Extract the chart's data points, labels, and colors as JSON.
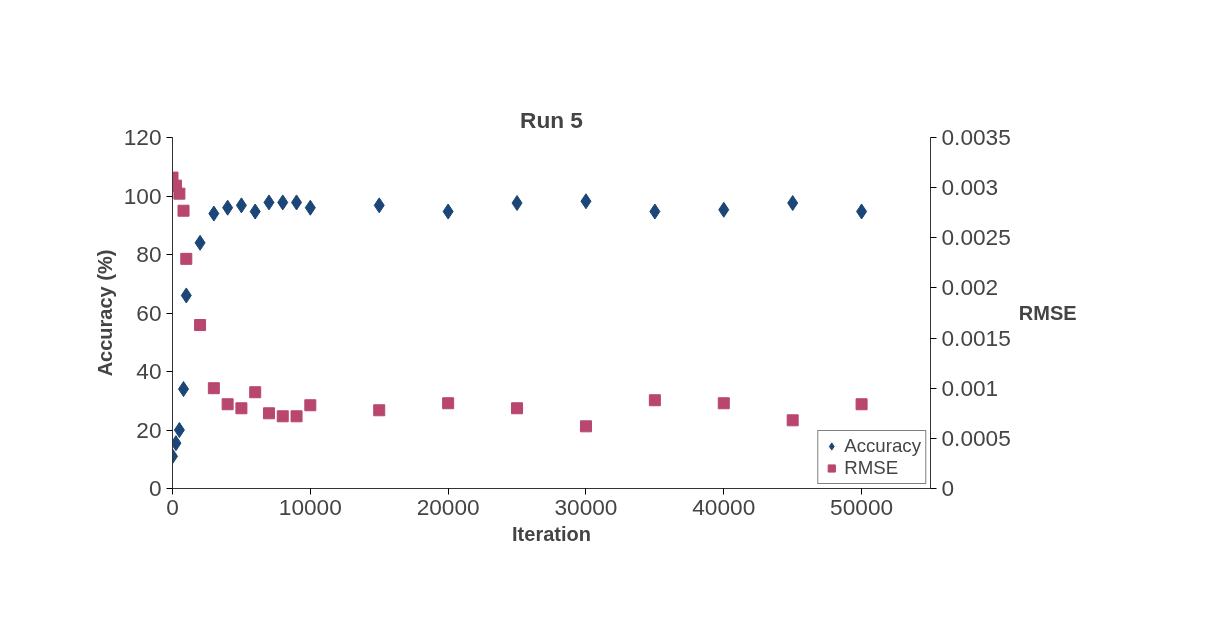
{
  "chart_data": {
    "type": "scatter",
    "title": "Run 5",
    "xlabel": "Iteration",
    "ylabel": "Accuracy (%)",
    "y2label": "RMSE",
    "x": [
      0,
      250,
      500,
      800,
      1000,
      2000,
      3000,
      4000,
      5000,
      6000,
      7000,
      8000,
      9000,
      10000,
      15000,
      20000,
      25000,
      30000,
      35000,
      40000,
      45000,
      50000
    ],
    "series": [
      {
        "name": "Accuracy",
        "color": "#1b4677",
        "marker": "diamond",
        "values": [
          11,
          15.5,
          20,
          34,
          66,
          84,
          94,
          96,
          96.8,
          94.7,
          97.8,
          97.8,
          97.8,
          96,
          96.8,
          94.7,
          97.6,
          98.2,
          94.7,
          95.3,
          97.6,
          94.7
        ]
      },
      {
        "name": "RMSE",
        "color": "#b8466f",
        "marker": "square",
        "axis": "y2",
        "values": [
          0.0031,
          0.00302,
          0.00294,
          0.00277,
          0.00229,
          0.00163,
          0.001,
          0.00084,
          0.0008,
          0.00096,
          0.00075,
          0.00072,
          0.00072,
          0.00083,
          0.00078,
          0.00085,
          0.0008,
          0.00062,
          0.00088,
          0.00085,
          0.00068,
          0.00084
        ]
      }
    ],
    "xlim": [
      0,
      55000
    ],
    "xticks": [
      0,
      10000,
      20000,
      30000,
      40000,
      50000
    ],
    "ylim": [
      0,
      120
    ],
    "yticks": [
      0,
      20,
      40,
      60,
      80,
      100,
      120
    ],
    "y2lim": [
      0,
      0.0035
    ],
    "y2ticks": [
      0,
      0.0005,
      0.001,
      0.0015,
      0.002,
      0.0025,
      0.003,
      0.0035
    ],
    "legend": "bottom right",
    "grid": false
  }
}
